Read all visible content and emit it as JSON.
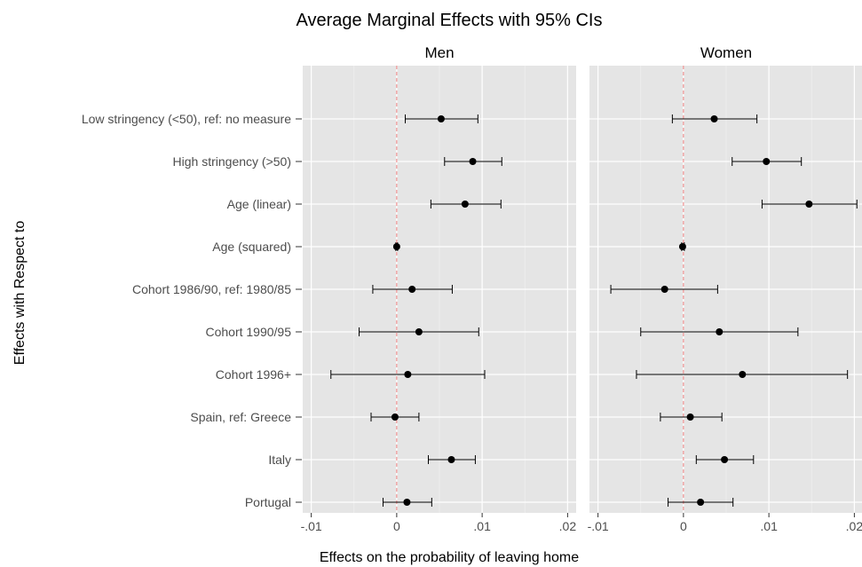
{
  "chart_data": {
    "type": "scatter",
    "title": "Average Marginal Effects with 95% CIs",
    "xlabel": "Effects on the probability of leaving home",
    "ylabel": "Effects with Respect to",
    "xlim": [
      -0.011,
      0.021
    ],
    "xticks": [
      -0.01,
      0,
      0.01,
      0.02
    ],
    "xtick_labels": [
      "-.01",
      "0",
      ".01",
      ".02"
    ],
    "reference_line": 0,
    "grid": true,
    "categories": [
      "Low stringency (<50), ref: no measure",
      "High stringency (>50)",
      "Age (linear)",
      "Age (squared)",
      "Cohort 1986/90, ref: 1980/85",
      "Cohort 1990/95",
      "Cohort 1996+",
      "Spain, ref: Greece",
      "Italy",
      "Portugal"
    ],
    "panels": [
      {
        "name": "Men",
        "estimates": [
          0.0052,
          0.0089,
          0.008,
          0.0,
          0.0018,
          0.0026,
          0.0013,
          -0.0002,
          0.0064,
          0.0012
        ],
        "lower": [
          0.001,
          0.0056,
          0.004,
          -0.0001,
          -0.0028,
          -0.0044,
          -0.0077,
          -0.003,
          0.0037,
          -0.0016
        ],
        "upper": [
          0.0095,
          0.0123,
          0.0122,
          0.0001,
          0.0065,
          0.0096,
          0.0103,
          0.0026,
          0.0092,
          0.0041
        ]
      },
      {
        "name": "Women",
        "estimates": [
          0.0036,
          0.0097,
          0.0147,
          -0.0001,
          -0.0022,
          0.0042,
          0.0069,
          0.0008,
          0.0048,
          0.002
        ],
        "lower": [
          -0.0013,
          0.0057,
          0.0092,
          -0.0002,
          -0.0085,
          -0.005,
          -0.0055,
          -0.0027,
          0.0015,
          -0.0018
        ],
        "upper": [
          0.0086,
          0.0138,
          0.0203,
          0.0001,
          0.004,
          0.0134,
          0.0192,
          0.0045,
          0.0082,
          0.0058
        ]
      }
    ]
  }
}
